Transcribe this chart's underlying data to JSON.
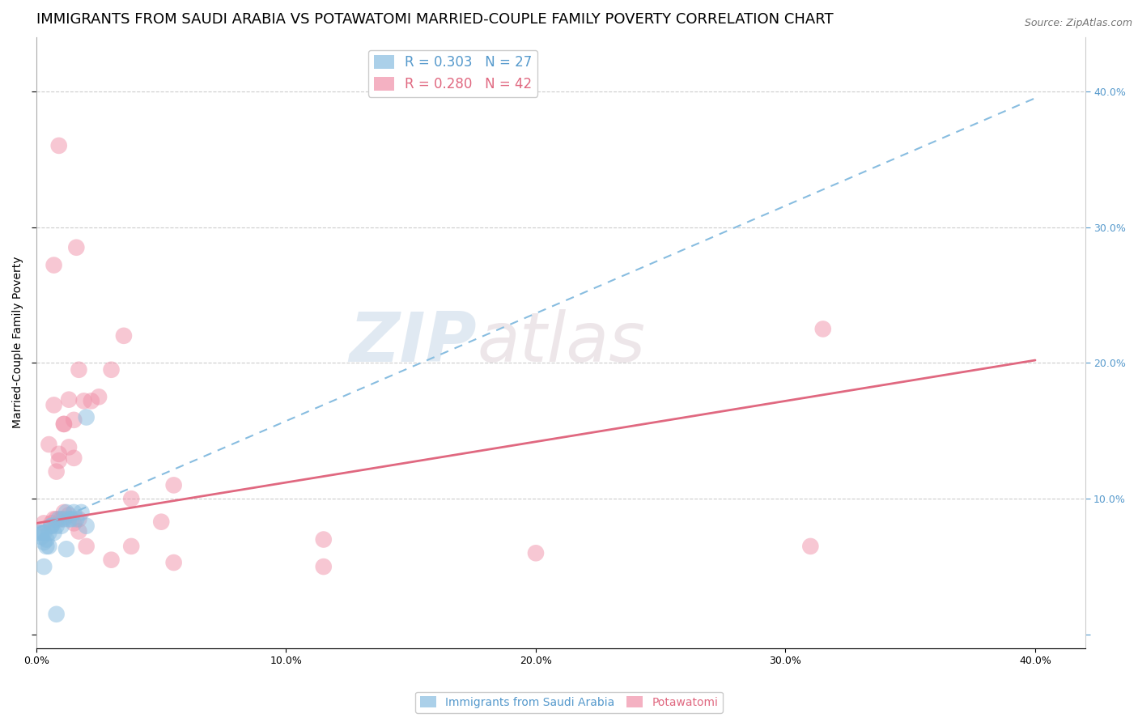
{
  "title": "IMMIGRANTS FROM SAUDI ARABIA VS POTAWATOMI MARRIED-COUPLE FAMILY POVERTY CORRELATION CHART",
  "source": "Source: ZipAtlas.com",
  "ylabel": "Married-Couple Family Poverty",
  "xlim": [
    0.0,
    0.42
  ],
  "ylim": [
    -0.01,
    0.44
  ],
  "xticks": [
    0.0,
    0.1,
    0.2,
    0.3,
    0.4
  ],
  "xtick_labels": [
    "0.0%",
    "10.0%",
    "20.0%",
    "30.0%",
    "40.0%"
  ],
  "yticks": [
    0.0,
    0.1,
    0.2,
    0.3,
    0.4
  ],
  "ytick_labels_right": [
    "",
    "10.0%",
    "20.0%",
    "30.0%",
    "40.0%"
  ],
  "legend_R1": "R = 0.303",
  "legend_N1": "N = 27",
  "legend_R2": "R = 0.280",
  "legend_N2": "N = 42",
  "watermark_zip": "ZIP",
  "watermark_atlas": "atlas",
  "blue_scatter_x": [
    0.002,
    0.003,
    0.004,
    0.005,
    0.006,
    0.001,
    0.002,
    0.003,
    0.004,
    0.005,
    0.006,
    0.007,
    0.008,
    0.009,
    0.01,
    0.011,
    0.012,
    0.013,
    0.014,
    0.015,
    0.016,
    0.018,
    0.02,
    0.008,
    0.012,
    0.02,
    0.003
  ],
  "blue_scatter_y": [
    0.075,
    0.068,
    0.065,
    0.065,
    0.08,
    0.075,
    0.072,
    0.075,
    0.07,
    0.075,
    0.08,
    0.075,
    0.08,
    0.085,
    0.08,
    0.085,
    0.09,
    0.085,
    0.085,
    0.09,
    0.085,
    0.09,
    0.08,
    0.015,
    0.063,
    0.16,
    0.05
  ],
  "pink_scatter_x": [
    0.003,
    0.006,
    0.007,
    0.008,
    0.01,
    0.011,
    0.013,
    0.015,
    0.017,
    0.005,
    0.008,
    0.009,
    0.011,
    0.013,
    0.015,
    0.017,
    0.019,
    0.022,
    0.025,
    0.03,
    0.035,
    0.038,
    0.05,
    0.055,
    0.007,
    0.009,
    0.011,
    0.013,
    0.015,
    0.017,
    0.02,
    0.007,
    0.009,
    0.016,
    0.03,
    0.055,
    0.115,
    0.2,
    0.31,
    0.038,
    0.115,
    0.315
  ],
  "pink_scatter_y": [
    0.082,
    0.082,
    0.085,
    0.085,
    0.085,
    0.09,
    0.088,
    0.082,
    0.085,
    0.14,
    0.12,
    0.128,
    0.155,
    0.138,
    0.158,
    0.195,
    0.172,
    0.172,
    0.175,
    0.195,
    0.22,
    0.1,
    0.083,
    0.11,
    0.169,
    0.133,
    0.155,
    0.173,
    0.13,
    0.076,
    0.065,
    0.272,
    0.36,
    0.285,
    0.055,
    0.053,
    0.07,
    0.06,
    0.065,
    0.065,
    0.05,
    0.225
  ],
  "blue_line_x": [
    0.0,
    0.4
  ],
  "blue_line_y": [
    0.078,
    0.395
  ],
  "pink_line_x": [
    0.0,
    0.4
  ],
  "pink_line_y": [
    0.082,
    0.202
  ],
  "blue_color": "#88bde0",
  "pink_color": "#f090a8",
  "blue_line_color": "#88bde0",
  "pink_line_color": "#e06880",
  "title_fontsize": 13,
  "axis_label_fontsize": 10,
  "tick_fontsize": 9,
  "legend_fontsize": 12,
  "right_tick_color": "#5599cc",
  "background_color": "#ffffff",
  "grid_color": "#cccccc"
}
